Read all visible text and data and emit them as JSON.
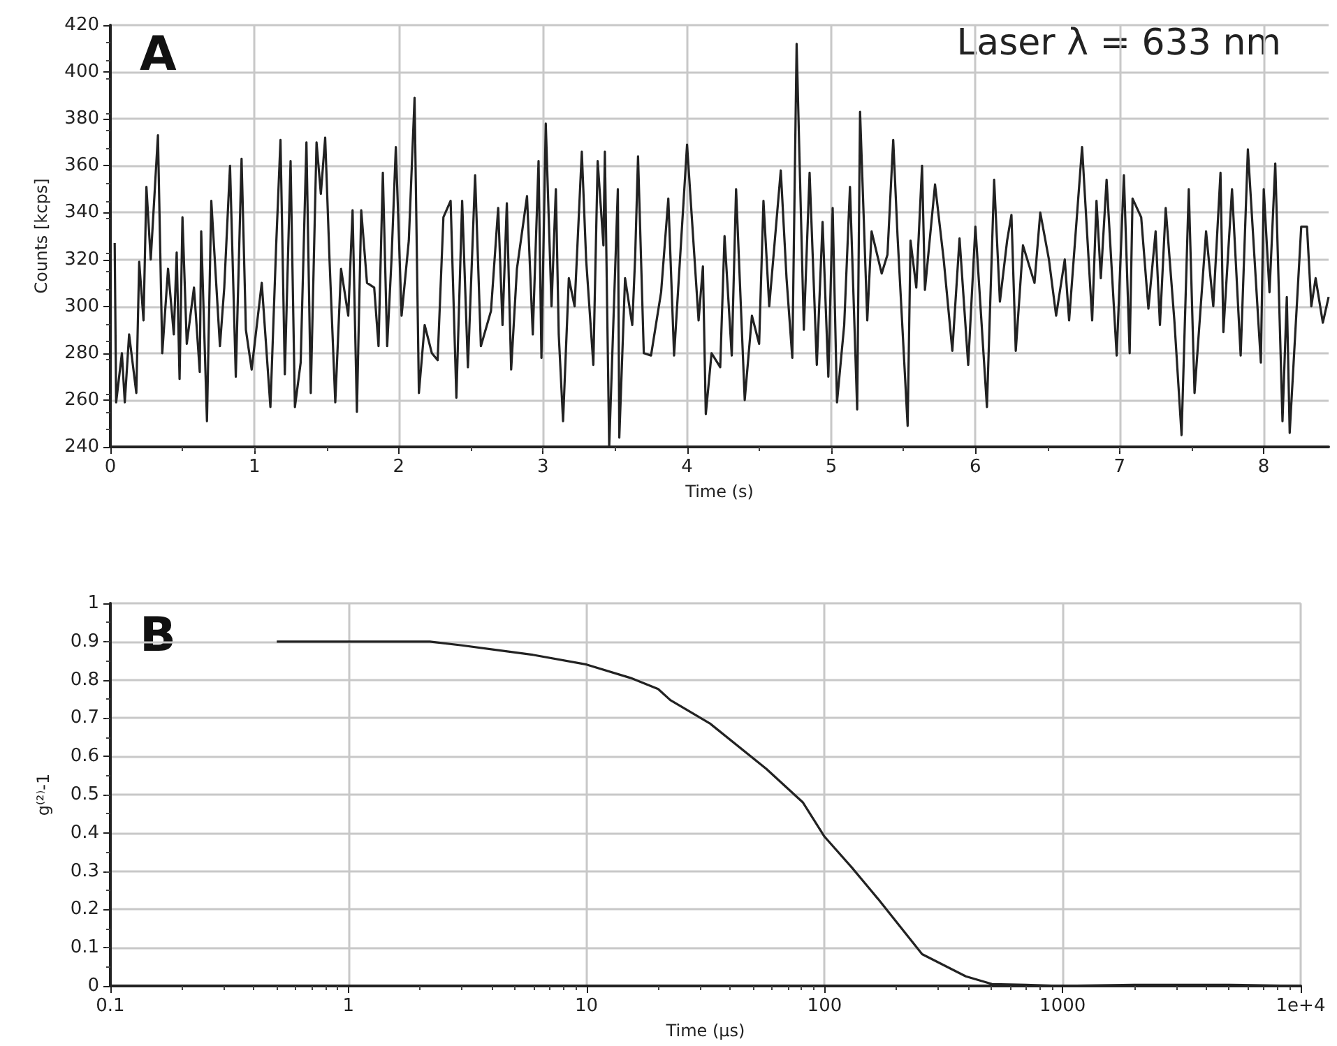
{
  "chart_data": [
    {
      "type": "line",
      "xlabel": "Time (s)",
      "ylabel": "Counts [kcps]",
      "annotations": [
        "A",
        "Laser λ = 633 nm"
      ],
      "color": "#222222",
      "marker": "none",
      "grid": true,
      "x": [
        0.03,
        0.04,
        0.08,
        0.1,
        0.13,
        0.18,
        0.2,
        0.23,
        0.25,
        0.28,
        0.33,
        0.36,
        0.4,
        0.44,
        0.46,
        0.48,
        0.5,
        0.53,
        0.58,
        0.62,
        0.63,
        0.67,
        0.7,
        0.76,
        0.79,
        0.83,
        0.87,
        0.91,
        0.94,
        0.98,
        1.05,
        1.11,
        1.15,
        1.18,
        1.21,
        1.25,
        1.28,
        1.32,
        1.36,
        1.39,
        1.43,
        1.46,
        1.49,
        1.52,
        1.56,
        1.6,
        1.65,
        1.68,
        1.71,
        1.74,
        1.78,
        1.83,
        1.86,
        1.89,
        1.92,
        1.95,
        1.98,
        2.02,
        2.07,
        2.11,
        2.14,
        2.18,
        2.23,
        2.27,
        2.31,
        2.36,
        2.4,
        2.44,
        2.48,
        2.53,
        2.57,
        2.64,
        2.69,
        2.72,
        2.75,
        2.78,
        2.82,
        2.89,
        2.93,
        2.97,
        2.99,
        3.02,
        3.06,
        3.09,
        3.11,
        3.14,
        3.18,
        3.22,
        3.27,
        3.3,
        3.35,
        3.38,
        3.42,
        3.43,
        3.46,
        3.52,
        3.53,
        3.57,
        3.62,
        3.64,
        3.66,
        3.7,
        3.75,
        3.82,
        3.87,
        3.91,
        4.0,
        4.08,
        4.11,
        4.13,
        4.17,
        4.23,
        4.26,
        4.31,
        4.34,
        4.4,
        4.45,
        4.5,
        4.53,
        4.57,
        4.65,
        4.69,
        4.73,
        4.76,
        4.81,
        4.85,
        4.9,
        4.94,
        4.98,
        5.01,
        5.04,
        5.09,
        5.13,
        5.18,
        5.2,
        5.25,
        5.28,
        5.35,
        5.39,
        5.43,
        5.46,
        5.53,
        5.55,
        5.59,
        5.63,
        5.65,
        5.72,
        5.78,
        5.84,
        5.89,
        5.95,
        6.0,
        6.08,
        6.13,
        6.17,
        6.22,
        6.25,
        6.28,
        6.33,
        6.41,
        6.45,
        6.51,
        6.56,
        6.62,
        6.65,
        6.74,
        6.81,
        6.84,
        6.87,
        6.91,
        6.98,
        7.03,
        7.07,
        7.09,
        7.15,
        7.2,
        7.25,
        7.28,
        7.32,
        7.38,
        7.43,
        7.48,
        7.52,
        7.6,
        7.65,
        7.7,
        7.72,
        7.78,
        7.84,
        7.89,
        7.98,
        8.0,
        8.04,
        8.08,
        8.13,
        8.16,
        8.18,
        8.26,
        8.3,
        8.33,
        8.36,
        8.41,
        8.45
      ],
      "values": [
        327,
        259,
        280,
        259,
        288,
        263,
        319,
        294,
        351,
        320,
        373,
        280,
        316,
        288,
        323,
        269,
        338,
        284,
        308,
        272,
        332,
        251,
        345,
        283,
        308,
        360,
        270,
        363,
        290,
        273,
        310,
        257,
        326,
        371,
        271,
        362,
        257,
        276,
        370,
        263,
        370,
        348,
        372,
        320,
        259,
        316,
        296,
        341,
        255,
        341,
        310,
        308,
        283,
        357,
        283,
        320,
        368,
        296,
        328,
        389,
        263,
        292,
        280,
        277,
        338,
        345,
        261,
        345,
        274,
        356,
        283,
        298,
        342,
        292,
        344,
        273,
        316,
        347,
        288,
        362,
        278,
        378,
        300,
        350,
        288,
        251,
        312,
        300,
        366,
        320,
        275,
        362,
        326,
        366,
        240,
        350,
        244,
        312,
        292,
        321,
        364,
        280,
        279,
        306,
        346,
        279,
        369,
        294,
        317,
        254,
        280,
        274,
        330,
        279,
        350,
        260,
        296,
        284,
        345,
        300,
        358,
        312,
        278,
        412,
        290,
        357,
        275,
        336,
        270,
        342,
        259,
        292,
        351,
        256,
        383,
        294,
        332,
        314,
        322,
        371,
        330,
        249,
        328,
        308,
        360,
        307,
        352,
        320,
        281,
        329,
        275,
        334,
        257,
        354,
        302,
        328,
        339,
        281,
        326,
        310,
        340,
        320,
        296,
        320,
        294,
        368,
        294,
        345,
        312,
        354,
        279,
        356,
        280,
        346,
        338,
        299,
        332,
        292,
        342,
        294,
        245,
        350,
        263,
        332,
        300,
        357,
        289,
        350,
        279,
        367,
        276,
        350,
        306,
        361,
        251,
        304,
        246,
        334,
        334,
        300,
        312,
        293,
        304
      ],
      "xlim": [
        0,
        8.45
      ],
      "xticks": [
        0,
        1,
        2,
        3,
        4,
        5,
        6,
        7,
        8
      ],
      "ylim": [
        240,
        420
      ],
      "yticks": [
        240,
        260,
        280,
        300,
        320,
        340,
        360,
        380,
        400,
        420
      ]
    },
    {
      "type": "line",
      "xlabel": "Time (µs)",
      "ylabel": "g⁽²⁾-1",
      "annotations": [
        "B"
      ],
      "color": "#222222",
      "marker": "none",
      "grid": true,
      "log": "x",
      "x": [
        0.5,
        1,
        2,
        2.2,
        3,
        4.3,
        6,
        10,
        15.3,
        20,
        22.5,
        33,
        57,
        81,
        100,
        130,
        168,
        257,
        392,
        505,
        700,
        1000,
        2000,
        5000,
        10000
      ],
      "values": [
        0.9,
        0.9,
        0.9,
        0.9,
        0.89,
        0.877,
        0.865,
        0.84,
        0.805,
        0.776,
        0.747,
        0.686,
        0.567,
        0.48,
        0.39,
        0.31,
        0.227,
        0.083,
        0.025,
        0.005,
        0.003,
        0,
        0.003,
        0.003,
        0
      ],
      "xlim": [
        0.1,
        10000
      ],
      "xticks": [
        0.1,
        1,
        10,
        100,
        1000,
        {
          "value": 10000,
          "label": "1e+4"
        }
      ],
      "ylim": [
        0,
        1
      ],
      "yticks": [
        0,
        0.1,
        0.2,
        0.3,
        0.4,
        0.5,
        0.6,
        0.7,
        0.8,
        0.9,
        1
      ]
    }
  ]
}
